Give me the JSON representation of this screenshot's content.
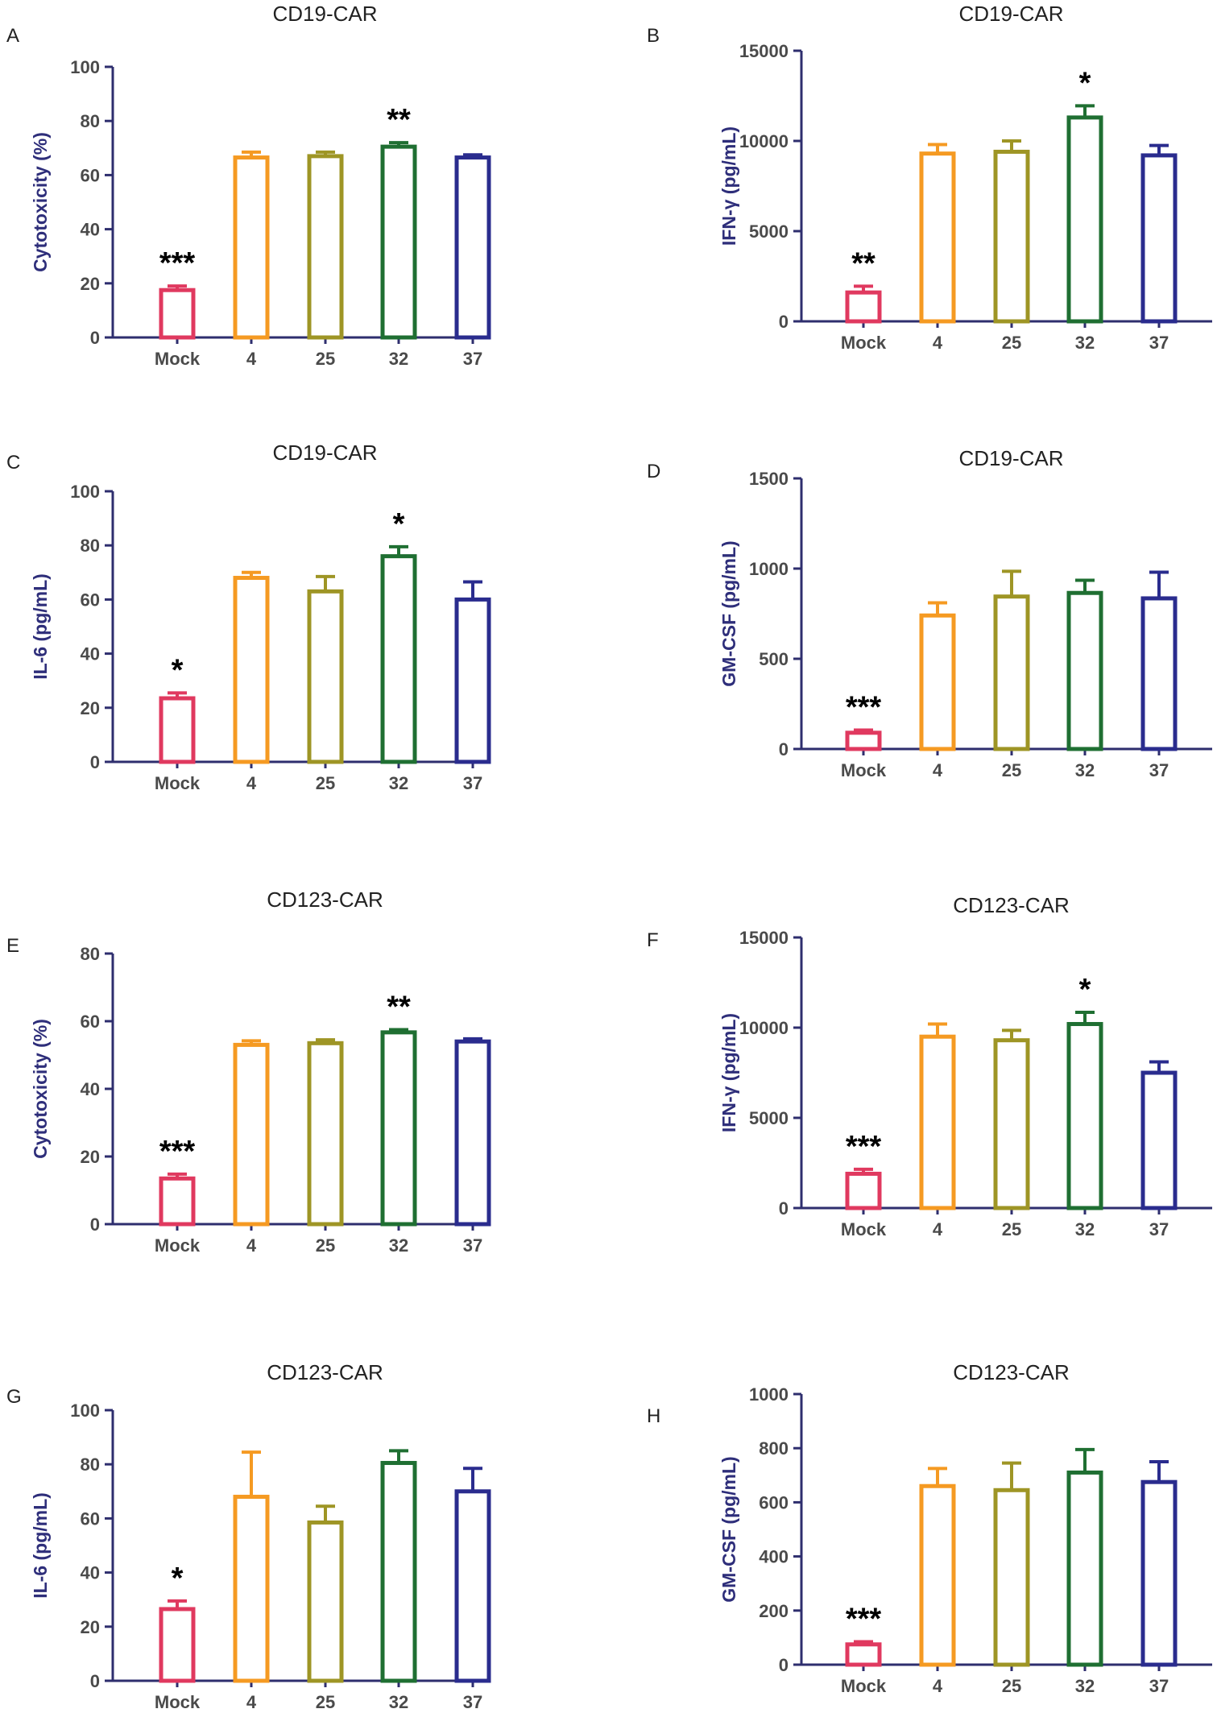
{
  "colors": {
    "axis": "#2e2e6e",
    "series": [
      "#e0395f",
      "#f59a22",
      "#9e9525",
      "#1f6f32",
      "#2a2c8e"
    ]
  },
  "chart_data": [
    {
      "panel": "A",
      "type": "bar",
      "title": "CD19-CAR",
      "ylabel": "Cytotoxicity (%)",
      "categories": [
        "Mock",
        "4",
        "25",
        "32",
        "37"
      ],
      "values": [
        17.5,
        66.5,
        67,
        70.5,
        66.5
      ],
      "errors": [
        1.5,
        2,
        1.5,
        1.5,
        1
      ],
      "significance": [
        "***",
        "",
        "",
        "**",
        ""
      ],
      "ylim": [
        0,
        100
      ],
      "yticks": [
        "0",
        "20",
        "40",
        "60",
        "80",
        "100"
      ]
    },
    {
      "panel": "B",
      "type": "bar",
      "title": "CD19-CAR",
      "ylabel": "IFN-γ (pg/mL)",
      "categories": [
        "Mock",
        "4",
        "25",
        "32",
        "37"
      ],
      "values": [
        1600,
        9300,
        9400,
        11300,
        9200
      ],
      "errors": [
        350,
        500,
        600,
        650,
        550
      ],
      "significance": [
        "**",
        "",
        "",
        "*",
        ""
      ],
      "ylim": [
        0,
        15000
      ],
      "yticks": [
        "0",
        "5000",
        "10000",
        "15000"
      ]
    },
    {
      "panel": "C",
      "type": "bar",
      "title": "CD19-CAR",
      "ylabel": "IL-6 (pg/mL)",
      "categories": [
        "Mock",
        "4",
        "25",
        "32",
        "37"
      ],
      "values": [
        23.5,
        68,
        63,
        76,
        60
      ],
      "errors": [
        2,
        2,
        5.5,
        3.5,
        6.5
      ],
      "significance": [
        "*",
        "",
        "",
        "*",
        ""
      ],
      "ylim": [
        0,
        100
      ],
      "yticks": [
        "0",
        "20",
        "40",
        "60",
        "80",
        "100"
      ]
    },
    {
      "panel": "D",
      "type": "bar",
      "title": "CD19-CAR",
      "ylabel": "GM-CSF (pg/mL)",
      "categories": [
        "Mock",
        "4",
        "25",
        "32",
        "37"
      ],
      "values": [
        90,
        740,
        845,
        865,
        835
      ],
      "errors": [
        15,
        70,
        140,
        70,
        145
      ],
      "significance": [
        "***",
        "",
        "",
        "",
        ""
      ],
      "ylim": [
        0,
        1500
      ],
      "yticks": [
        "0",
        "500",
        "1000",
        "1500"
      ]
    },
    {
      "panel": "E",
      "type": "bar",
      "title": "CD123-CAR",
      "ylabel": "Cytotoxicity (%)",
      "categories": [
        "Mock",
        "4",
        "25",
        "32",
        "37"
      ],
      "values": [
        13.5,
        53,
        53.5,
        56.7,
        54
      ],
      "errors": [
        1.3,
        1.2,
        1,
        0.8,
        0.8
      ],
      "significance": [
        "***",
        "",
        "",
        "**",
        ""
      ],
      "ylim": [
        0,
        80
      ],
      "yticks": [
        "0",
        "20",
        "40",
        "60",
        "80"
      ]
    },
    {
      "panel": "F",
      "type": "bar",
      "title": "CD123-CAR",
      "ylabel": "IFN-γ (pg/mL)",
      "categories": [
        "Mock",
        "4",
        "25",
        "32",
        "37"
      ],
      "values": [
        1900,
        9500,
        9300,
        10200,
        7500
      ],
      "errors": [
        250,
        700,
        550,
        650,
        600
      ],
      "significance": [
        "***",
        "",
        "",
        "*",
        ""
      ],
      "ylim": [
        0,
        15000
      ],
      "yticks": [
        "0",
        "5000",
        "10000",
        "15000"
      ]
    },
    {
      "panel": "G",
      "type": "bar",
      "title": "CD123-CAR",
      "ylabel": "IL-6 (pg/mL)",
      "categories": [
        "Mock",
        "4",
        "25",
        "32",
        "37"
      ],
      "values": [
        26.5,
        68,
        58.5,
        80.5,
        70
      ],
      "errors": [
        3,
        16.5,
        6,
        4.5,
        8.5
      ],
      "significance": [
        "*",
        "",
        "",
        "",
        ""
      ],
      "ylim": [
        0,
        100
      ],
      "yticks": [
        "0",
        "20",
        "40",
        "60",
        "80",
        "100"
      ]
    },
    {
      "panel": "H",
      "type": "bar",
      "title": "CD123-CAR",
      "ylabel": "GM-CSF (pg/mL)",
      "categories": [
        "Mock",
        "4",
        "25",
        "32",
        "37"
      ],
      "values": [
        75,
        660,
        645,
        710,
        675
      ],
      "errors": [
        10,
        65,
        100,
        85,
        75
      ],
      "significance": [
        "***",
        "",
        "",
        "",
        ""
      ],
      "ylim": [
        0,
        1000
      ],
      "yticks": [
        "0",
        "200",
        "400",
        "600",
        "800",
        "1000"
      ]
    }
  ]
}
